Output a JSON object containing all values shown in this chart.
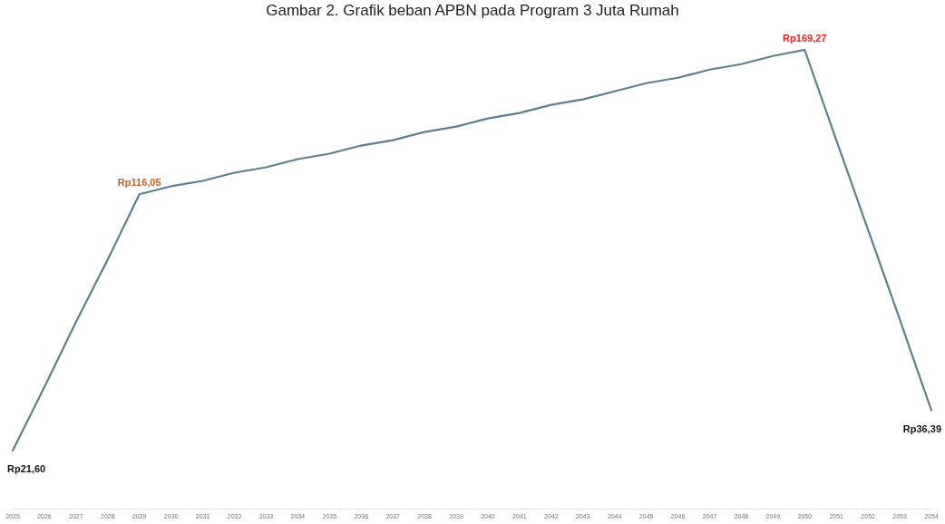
{
  "chart_data": {
    "type": "line",
    "title": "Gambar 2. Grafik beban APBN pada Program 3 Juta Rumah",
    "categories": [
      "2025",
      "2026",
      "2027",
      "2028",
      "2029",
      "2030",
      "2031",
      "2032",
      "2033",
      "2034",
      "2035",
      "2036",
      "2037",
      "2038",
      "2039",
      "2040",
      "2041",
      "2042",
      "2043",
      "2044",
      "2045",
      "2046",
      "2047",
      "2048",
      "2049",
      "2050",
      "2051",
      "2052",
      "2053",
      "2054"
    ],
    "series": [
      {
        "color": "#5d7f8e",
        "values": [
          21.6,
          45,
          69,
          92,
          116.05,
          119,
          121,
          124,
          126,
          129,
          131,
          134,
          136,
          139,
          141,
          144,
          146,
          149,
          151,
          154,
          157,
          159,
          162,
          164,
          167,
          169.27,
          136,
          103,
          70,
          36.39
        ],
        "value_labels": [
          "Rp21,60",
          null,
          null,
          null,
          "Rp116,05",
          null,
          null,
          null,
          null,
          null,
          null,
          null,
          null,
          null,
          null,
          null,
          null,
          null,
          null,
          null,
          null,
          null,
          null,
          null,
          null,
          "Rp169,27",
          null,
          null,
          null,
          "Rp36,39"
        ]
      }
    ],
    "marker": "none",
    "line_style": "solid",
    "grid": false,
    "legend": false
  }
}
